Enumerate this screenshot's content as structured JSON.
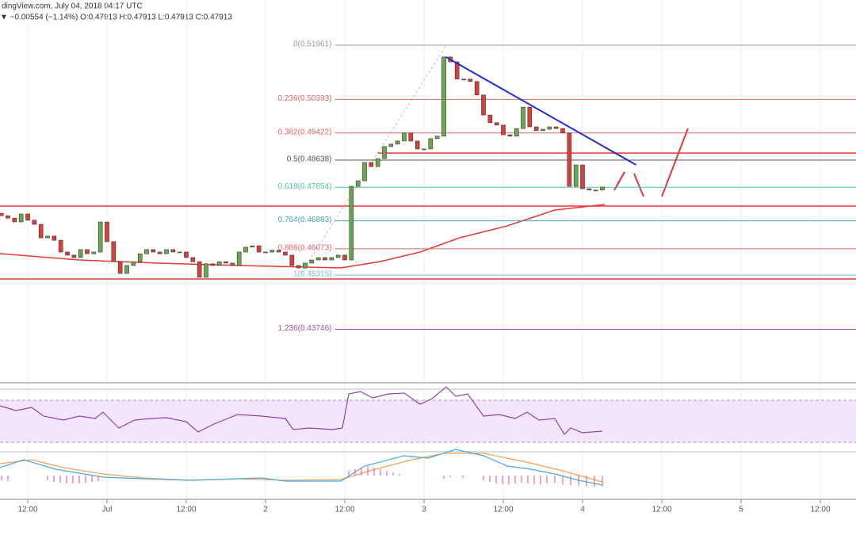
{
  "chart_data": {
    "type": "candlestick",
    "header": "dingView.com, July 04, 2018 04:17 UTC",
    "quote": "▼ −0.00554 (−1.14%) O:0.47913 H:0.47913 L:0.47913 C:0.47913",
    "x": [
      8,
      9,
      10,
      11,
      12,
      13,
      14,
      15,
      16,
      17,
      18,
      19,
      20,
      21,
      22,
      23,
      24,
      25,
      26,
      27,
      28,
      29,
      30,
      31,
      32,
      33,
      34,
      35,
      36,
      37,
      38,
      39,
      40,
      41,
      42,
      43,
      44,
      45,
      46,
      47,
      48,
      49,
      50,
      51,
      52,
      53,
      54,
      55,
      56,
      57,
      58,
      59,
      60,
      61,
      62,
      63,
      64,
      65,
      66,
      67,
      68,
      69,
      70,
      71,
      72,
      73,
      74,
      75,
      76,
      77,
      78,
      79,
      80,
      81,
      82,
      83,
      84,
      85,
      86,
      87,
      88,
      89,
      90,
      91,
      92,
      93,
      94,
      95,
      96,
      97,
      98,
      99
    ],
    "open": [
      0.471,
      0.4703,
      0.4696,
      0.4685,
      0.4708,
      0.469,
      0.4678,
      0.4639,
      0.4644,
      0.4632,
      0.4598,
      0.4589,
      0.4582,
      0.4605,
      0.4593,
      0.4598,
      0.4685,
      0.4628,
      0.457,
      0.4536,
      0.4559,
      0.457,
      0.4593,
      0.4605,
      0.4598,
      0.4593,
      0.4605,
      0.4598,
      0.4598,
      0.4582,
      0.457,
      0.4525,
      0.4564,
      0.4559,
      0.457,
      0.4566,
      0.4559,
      0.4598,
      0.4612,
      0.4616,
      0.4598,
      0.4598,
      0.4603,
      0.4598,
      0.4589,
      0.4559,
      0.4552,
      0.4566,
      0.4575,
      0.4582,
      0.4575,
      0.4582,
      0.4589,
      0.4575,
      0.4788,
      0.4804,
      0.4857,
      0.4845,
      0.4868,
      0.4903,
      0.491,
      0.4919,
      0.4942,
      0.4919,
      0.4896,
      0.4896,
      0.4926,
      0.4933,
      0.5162,
      0.5148,
      0.5098,
      0.5098,
      0.5091,
      0.5052,
      0.4994,
      0.4972,
      0.4965,
      0.4937,
      0.4933,
      0.4955,
      0.5017,
      0.496,
      0.4949,
      0.4953,
      0.496,
      0.4955,
      0.4942,
      0.4788,
      0.485,
      0.4781,
      0.4777,
      0.4777
    ],
    "close": [
      0.4703,
      0.4696,
      0.4685,
      0.4708,
      0.469,
      0.4678,
      0.4639,
      0.4644,
      0.4632,
      0.4598,
      0.4589,
      0.4582,
      0.4605,
      0.4593,
      0.4598,
      0.4685,
      0.4628,
      0.457,
      0.4536,
      0.4559,
      0.457,
      0.4593,
      0.4605,
      0.4598,
      0.4593,
      0.4605,
      0.4598,
      0.4598,
      0.4582,
      0.457,
      0.4525,
      0.4564,
      0.4559,
      0.457,
      0.4566,
      0.4559,
      0.4598,
      0.4612,
      0.4616,
      0.4598,
      0.4598,
      0.4603,
      0.4598,
      0.4589,
      0.4559,
      0.4552,
      0.4566,
      0.4575,
      0.4582,
      0.4575,
      0.4582,
      0.4589,
      0.4575,
      0.4788,
      0.4804,
      0.4857,
      0.4845,
      0.4868,
      0.4903,
      0.491,
      0.4919,
      0.4942,
      0.4919,
      0.4896,
      0.4896,
      0.4926,
      0.4933,
      0.5162,
      0.5148,
      0.5098,
      0.5098,
      0.5091,
      0.5052,
      0.4994,
      0.4972,
      0.4965,
      0.4937,
      0.4933,
      0.4955,
      0.5017,
      0.496,
      0.4949,
      0.4953,
      0.496,
      0.4955,
      0.4942,
      0.4788,
      0.485,
      0.4781,
      0.4777,
      0.4777,
      0.4786
    ],
    "up_color": "#6aa84f",
    "down_color": "#d9403a",
    "xlim": [
      7.8,
      137.4
    ],
    "ylim": [
      0.42267,
      0.53267
    ],
    "xticks": [
      {
        "value": 12,
        "label": "12:00"
      },
      {
        "value": 24,
        "label": "Jul"
      },
      {
        "value": 36,
        "label": "12:00"
      },
      {
        "value": 48,
        "label": "2"
      },
      {
        "value": 60,
        "label": "12:00"
      },
      {
        "value": 72,
        "label": "3"
      },
      {
        "value": 84,
        "label": "12:00"
      },
      {
        "value": 96,
        "label": "4"
      },
      {
        "value": 108,
        "label": "12:00"
      },
      {
        "value": 120,
        "label": "5"
      },
      {
        "value": 132,
        "label": "12:00"
      }
    ],
    "fib_levels": [
      {
        "label": "0(0.51961)",
        "value": 0.51961,
        "color": "#999999"
      },
      {
        "label": "0.236(0.50393)",
        "value": 0.50393,
        "color": "#e06666"
      },
      {
        "label": "0.382(0.49422)",
        "value": 0.49422,
        "color": "#e06666"
      },
      {
        "label": "0.5(0.48638)",
        "value": 0.48638,
        "color": "#555555"
      },
      {
        "label": "0.618(0.47854)",
        "value": 0.47854,
        "color": "#4fc3a1"
      },
      {
        "label": "0.764(0.46883)",
        "value": 0.46883,
        "color": "#45a3c8"
      },
      {
        "label": "0.886(0.46073)",
        "value": 0.46073,
        "color": "#e06666"
      },
      {
        "label": "1(0.45315)",
        "value": 0.45315,
        "color": "#7ab8d8"
      },
      {
        "label": "1.236(0.43746)",
        "value": 0.43746,
        "color": "#9b4fb0"
      }
    ],
    "support_lines": [
      {
        "value": 0.4884,
        "start": 65,
        "color": "#e53935"
      },
      {
        "value": 0.4731,
        "start": 7.8,
        "color": "#e53935"
      },
      {
        "value": 0.452,
        "start": 7.8,
        "color": "#e53935"
      }
    ],
    "trend_line": {
      "x": [
        75.3,
        104.1
      ],
      "y": [
        0.5162,
        0.485
      ],
      "color": "#1f2fd6"
    }
  }
}
